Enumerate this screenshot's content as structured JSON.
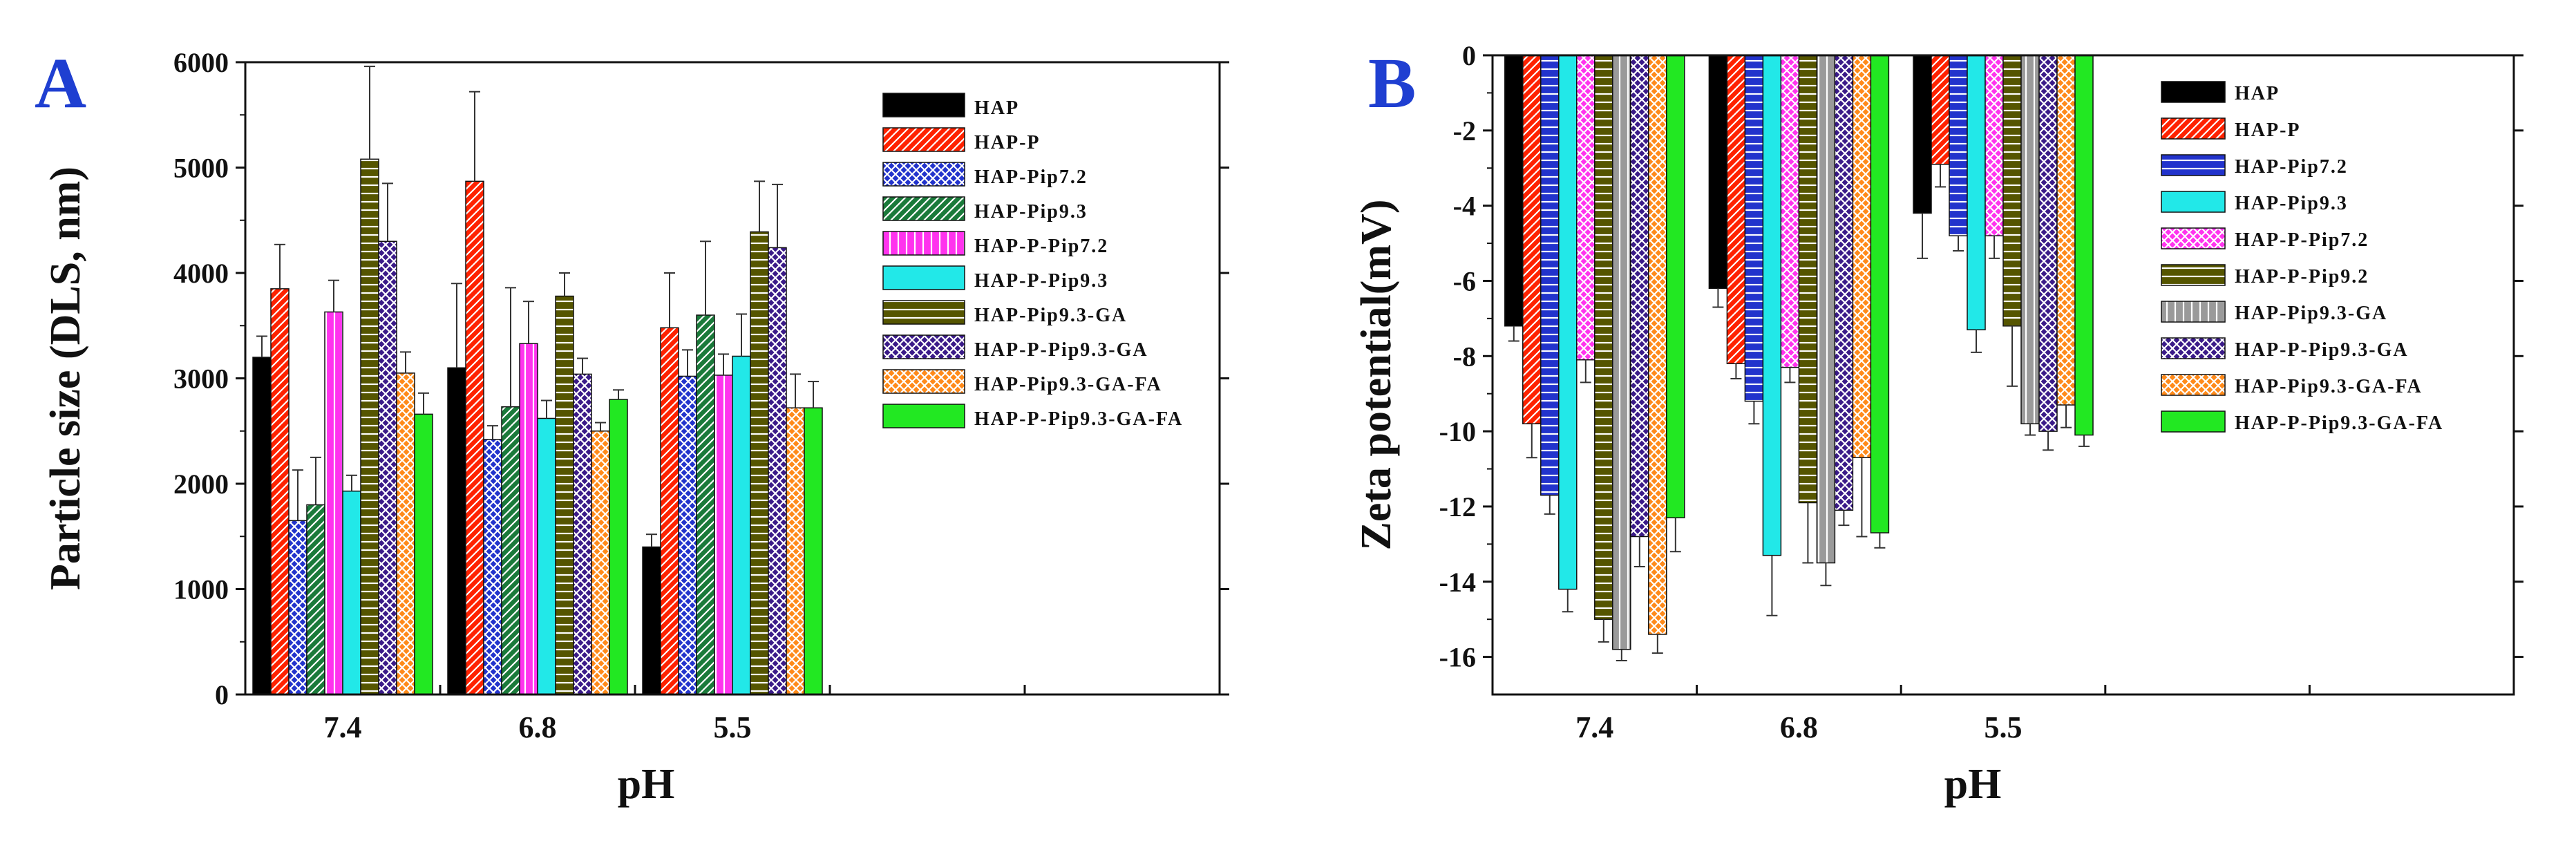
{
  "chart_data": [
    {
      "panel_label": "A",
      "type": "bar",
      "xlabel": "pH",
      "ylabel": "Particle size (DLS, nm)",
      "ylim": [
        0,
        6000
      ],
      "yticks": [
        "0",
        "1000",
        "2000",
        "3000",
        "4000",
        "5000",
        "6000"
      ],
      "categories": [
        "7.4",
        "6.8",
        "5.5"
      ],
      "legend_position": "top-right",
      "series": [
        {
          "name": "HAP",
          "color": "#000000",
          "pattern": "solid",
          "values": [
            3200,
            3100,
            1400
          ],
          "errors": [
            200,
            800,
            120
          ]
        },
        {
          "name": "HAP-P",
          "color": "#ff2200",
          "pattern": "diag",
          "values": [
            3850,
            4870,
            3480
          ],
          "errors": [
            420,
            850,
            520
          ]
        },
        {
          "name": "HAP-Pip7.2",
          "color": "#2233cc",
          "pattern": "cross",
          "values": [
            1650,
            2420,
            3020
          ],
          "errors": [
            480,
            130,
            250
          ]
        },
        {
          "name": "HAP-Pip9.3",
          "color": "#1a7a3a",
          "pattern": "diag",
          "values": [
            1800,
            2730,
            3600
          ],
          "errors": [
            450,
            1130,
            700
          ]
        },
        {
          "name": "HAP-P-Pip7.2",
          "color": "#ff33ee",
          "pattern": "vert",
          "values": [
            3630,
            3330,
            3030
          ],
          "errors": [
            300,
            400,
            200
          ]
        },
        {
          "name": "HAP-P-Pip9.3",
          "color": "#22e8e8",
          "pattern": "solid",
          "values": [
            1930,
            2620,
            3210
          ],
          "errors": [
            150,
            170,
            400
          ]
        },
        {
          "name": "HAP-Pip9.3-GA",
          "color": "#555500",
          "pattern": "horiz",
          "values": [
            5080,
            3780,
            4390
          ],
          "errors": [
            880,
            220,
            480
          ]
        },
        {
          "name": "HAP-P-Pip9.3-GA",
          "color": "#3a1a88",
          "pattern": "cross",
          "values": [
            4300,
            3040,
            4240
          ],
          "errors": [
            550,
            150,
            600
          ]
        },
        {
          "name": "HAP-Pip9.3-GA-FA",
          "color": "#ff8a1a",
          "pattern": "cross",
          "values": [
            3050,
            2500,
            2720
          ],
          "errors": [
            200,
            80,
            320
          ]
        },
        {
          "name": "HAP-P-Pip9.3-GA-FA",
          "color": "#22e822",
          "pattern": "solid",
          "values": [
            2660,
            2800,
            2720
          ],
          "errors": [
            200,
            90,
            250
          ]
        }
      ]
    },
    {
      "panel_label": "B",
      "type": "bar",
      "xlabel": "pH",
      "ylabel": "Zeta potential(mV)",
      "ylim": [
        -17,
        0
      ],
      "yticks": [
        "0",
        "-2",
        "-4",
        "-6",
        "-8",
        "-10",
        "-12",
        "-14",
        "-16"
      ],
      "categories": [
        "7.4",
        "6.8",
        "5.5"
      ],
      "legend_position": "top-right",
      "series": [
        {
          "name": "HAP",
          "color": "#000000",
          "pattern": "solid",
          "values": [
            -7.2,
            -6.2,
            -4.2
          ],
          "errors": [
            0.4,
            0.5,
            1.2
          ]
        },
        {
          "name": "HAP-P",
          "color": "#ff2200",
          "pattern": "diag",
          "values": [
            -9.8,
            -8.2,
            -2.9
          ],
          "errors": [
            0.9,
            0.4,
            0.6
          ]
        },
        {
          "name": "HAP-Pip7.2",
          "color": "#2233cc",
          "pattern": "horiz",
          "values": [
            -11.7,
            -9.2,
            -4.8
          ],
          "errors": [
            0.5,
            0.6,
            0.4
          ]
        },
        {
          "name": "HAP-Pip9.3",
          "color": "#22e8e8",
          "pattern": "solid",
          "values": [
            -14.2,
            -13.3,
            -7.3
          ],
          "errors": [
            0.6,
            1.6,
            0.6
          ]
        },
        {
          "name": "HAP-P-Pip7.2",
          "color": "#ff33ee",
          "pattern": "cross",
          "values": [
            -8.1,
            -8.3,
            -4.8
          ],
          "errors": [
            0.6,
            0.4,
            0.6
          ]
        },
        {
          "name": "HAP-P-Pip9.2",
          "color": "#555500",
          "pattern": "horiz",
          "values": [
            -15.0,
            -11.9,
            -7.2
          ],
          "errors": [
            0.6,
            1.6,
            1.6
          ]
        },
        {
          "name": "HAP-Pip9.3-GA",
          "color": "#9a9a9a",
          "pattern": "vert",
          "values": [
            -15.8,
            -13.5,
            -9.8
          ],
          "errors": [
            0.3,
            0.6,
            0.3
          ]
        },
        {
          "name": "HAP-P-Pip9.3-GA",
          "color": "#3a1a88",
          "pattern": "cross",
          "values": [
            -12.8,
            -12.1,
            -10.0
          ],
          "errors": [
            0.8,
            0.4,
            0.5
          ]
        },
        {
          "name": "HAP-Pip9.3-GA-FA",
          "color": "#ff8a1a",
          "pattern": "cross",
          "values": [
            -15.4,
            -10.7,
            -9.3
          ],
          "errors": [
            0.5,
            2.1,
            0.6
          ]
        },
        {
          "name": "HAP-P-Pip9.3-GA-FA",
          "color": "#22e822",
          "pattern": "solid",
          "values": [
            -12.3,
            -12.7,
            -10.1
          ],
          "errors": [
            0.9,
            0.4,
            0.3
          ]
        }
      ]
    }
  ]
}
